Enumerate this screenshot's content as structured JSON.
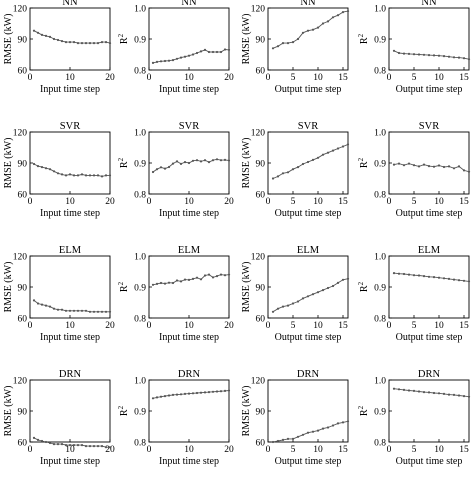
{
  "chart_data": [
    {
      "type": "line",
      "title": "NN",
      "xlabel": "Input time step",
      "ylabel": "RMSE (kW)",
      "xlim": [
        0,
        20
      ],
      "ylim": [
        60,
        120
      ],
      "xticks": [
        0,
        10,
        20
      ],
      "yticks": [
        60,
        90,
        120
      ],
      "series": [
        {
          "x": [
            1,
            2,
            3,
            4,
            5,
            6,
            7,
            8,
            9,
            10,
            11,
            12,
            13,
            14,
            15,
            16,
            17,
            18,
            19,
            20
          ],
          "values": [
            98,
            96,
            94,
            93,
            92,
            90,
            89,
            88,
            87,
            87,
            87,
            86,
            86,
            86,
            86,
            86,
            86,
            87,
            87,
            86
          ]
        }
      ]
    },
    {
      "type": "line",
      "title": "NN",
      "xlabel": "Input time step",
      "ylabel": "R2",
      "xlim": [
        0,
        20
      ],
      "ylim": [
        0.8,
        1.0
      ],
      "xticks": [
        0,
        10,
        20
      ],
      "yticks": [
        0.8,
        0.9,
        1.0
      ],
      "series": [
        {
          "x": [
            1,
            2,
            3,
            4,
            5,
            6,
            7,
            8,
            9,
            10,
            11,
            12,
            13,
            14,
            15,
            16,
            17,
            18,
            19,
            20
          ],
          "values": [
            0.823,
            0.826,
            0.828,
            0.829,
            0.83,
            0.832,
            0.836,
            0.84,
            0.843,
            0.846,
            0.85,
            0.855,
            0.86,
            0.865,
            0.858,
            0.858,
            0.858,
            0.858,
            0.866,
            0.865
          ]
        }
      ]
    },
    {
      "type": "line",
      "title": "NN",
      "xlabel": "Output time step",
      "ylabel": "RMSE (kW)",
      "xlim": [
        0,
        16
      ],
      "ylim": [
        60,
        120
      ],
      "xticks": [
        0,
        5,
        10,
        15
      ],
      "yticks": [
        60,
        90,
        120
      ],
      "series": [
        {
          "x": [
            1,
            2,
            3,
            4,
            5,
            6,
            7,
            8,
            9,
            10,
            11,
            12,
            13,
            14,
            15,
            16
          ],
          "values": [
            81,
            83,
            86,
            86,
            87,
            90,
            96,
            98,
            99,
            101,
            105,
            107,
            111,
            113,
            116,
            117
          ]
        }
      ]
    },
    {
      "type": "line",
      "title": "NN",
      "xlabel": "Output time step",
      "ylabel": "R2",
      "xlim": [
        0,
        16
      ],
      "ylim": [
        0.8,
        1.0
      ],
      "xticks": [
        0,
        5,
        10,
        15
      ],
      "yticks": [
        0.8,
        0.9,
        1.0
      ],
      "series": [
        {
          "x": [
            1,
            2,
            3,
            4,
            5,
            6,
            7,
            8,
            9,
            10,
            11,
            12,
            13,
            14,
            15,
            16
          ],
          "values": [
            0.862,
            0.855,
            0.853,
            0.852,
            0.851,
            0.85,
            0.849,
            0.848,
            0.847,
            0.846,
            0.845,
            0.843,
            0.841,
            0.84,
            0.838,
            0.835
          ]
        }
      ]
    },
    {
      "type": "line",
      "title": "SVR",
      "xlabel": "Input time step",
      "ylabel": "RMSE (kW)",
      "xlim": [
        0,
        20
      ],
      "ylim": [
        60,
        120
      ],
      "xticks": [
        0,
        10,
        20
      ],
      "yticks": [
        60,
        90,
        120
      ],
      "series": [
        {
          "x": [
            1,
            2,
            3,
            4,
            5,
            6,
            7,
            8,
            9,
            10,
            11,
            12,
            13,
            14,
            15,
            16,
            17,
            18,
            19,
            20
          ],
          "values": [
            89,
            87,
            86,
            85,
            84,
            82,
            80,
            79,
            78,
            79,
            78,
            78,
            79,
            78,
            78,
            78,
            78,
            77,
            78,
            78
          ]
        }
      ]
    },
    {
      "type": "line",
      "title": "SVR",
      "xlabel": "Input time step",
      "ylabel": "R2",
      "xlim": [
        0,
        20
      ],
      "ylim": [
        0.8,
        1.0
      ],
      "xticks": [
        0,
        10,
        20
      ],
      "yticks": [
        0.8,
        0.9,
        1.0
      ],
      "series": [
        {
          "x": [
            1,
            2,
            3,
            4,
            5,
            6,
            7,
            8,
            9,
            10,
            11,
            12,
            13,
            14,
            15,
            16,
            17,
            18,
            19,
            20
          ],
          "values": [
            0.871,
            0.88,
            0.886,
            0.882,
            0.887,
            0.898,
            0.905,
            0.897,
            0.903,
            0.9,
            0.907,
            0.909,
            0.905,
            0.909,
            0.903,
            0.909,
            0.912,
            0.909,
            0.91,
            0.908
          ]
        }
      ]
    },
    {
      "type": "line",
      "title": "SVR",
      "xlabel": "Output time step",
      "ylabel": "RMSE (kW)",
      "xlim": [
        0,
        16
      ],
      "ylim": [
        60,
        120
      ],
      "xticks": [
        0,
        5,
        10,
        15
      ],
      "yticks": [
        60,
        90,
        120
      ],
      "series": [
        {
          "x": [
            1,
            2,
            3,
            4,
            5,
            6,
            7,
            8,
            9,
            10,
            11,
            12,
            13,
            14,
            15,
            16
          ],
          "values": [
            75,
            77,
            80,
            81,
            84,
            86,
            89,
            91,
            93,
            95,
            98,
            100,
            102,
            104,
            106,
            108
          ]
        }
      ]
    },
    {
      "type": "line",
      "title": "SVR",
      "xlabel": "Output time step",
      "ylabel": "R2",
      "xlim": [
        0,
        16
      ],
      "ylim": [
        0.8,
        1.0
      ],
      "xticks": [
        0,
        5,
        10,
        15
      ],
      "yticks": [
        0.8,
        0.9,
        1.0
      ],
      "series": [
        {
          "x": [
            1,
            2,
            3,
            4,
            5,
            6,
            7,
            8,
            9,
            10,
            11,
            12,
            13,
            14,
            15,
            16
          ],
          "values": [
            0.895,
            0.898,
            0.893,
            0.898,
            0.893,
            0.889,
            0.895,
            0.89,
            0.888,
            0.892,
            0.887,
            0.889,
            0.883,
            0.889,
            0.876,
            0.872
          ]
        }
      ]
    },
    {
      "type": "line",
      "title": "ELM",
      "xlabel": "Input time step",
      "ylabel": "RMSE (kW)",
      "xlim": [
        0,
        20
      ],
      "ylim": [
        60,
        120
      ],
      "xticks": [
        0,
        10,
        20
      ],
      "yticks": [
        60,
        90,
        120
      ],
      "series": [
        {
          "x": [
            1,
            2,
            3,
            4,
            5,
            6,
            7,
            8,
            9,
            10,
            11,
            12,
            13,
            14,
            15,
            16,
            17,
            18,
            19,
            20
          ],
          "values": [
            77,
            74,
            73,
            72,
            71,
            69,
            68,
            68,
            67,
            67,
            67,
            67,
            67,
            67,
            66,
            66,
            66,
            66,
            66,
            66
          ]
        }
      ]
    },
    {
      "type": "line",
      "title": "ELM",
      "xlabel": "Input time step",
      "ylabel": "R2",
      "xlim": [
        0,
        20
      ],
      "ylim": [
        0.8,
        1.0
      ],
      "xticks": [
        0,
        10,
        20
      ],
      "yticks": [
        0.8,
        0.9,
        1.0
      ],
      "series": [
        {
          "x": [
            1,
            2,
            3,
            4,
            5,
            6,
            7,
            8,
            9,
            10,
            11,
            12,
            13,
            14,
            15,
            16,
            17,
            18,
            19,
            20
          ],
          "values": [
            0.907,
            0.91,
            0.913,
            0.911,
            0.914,
            0.913,
            0.921,
            0.918,
            0.924,
            0.923,
            0.926,
            0.93,
            0.925,
            0.937,
            0.94,
            0.931,
            0.935,
            0.94,
            0.938,
            0.94
          ]
        }
      ]
    },
    {
      "type": "line",
      "title": "ELM",
      "xlabel": "Output time step",
      "ylabel": "RMSE (kW)",
      "xlim": [
        0,
        16
      ],
      "ylim": [
        60,
        120
      ],
      "xticks": [
        0,
        5,
        10,
        15
      ],
      "yticks": [
        60,
        90,
        120
      ],
      "series": [
        {
          "x": [
            1,
            2,
            3,
            4,
            5,
            6,
            7,
            8,
            9,
            10,
            11,
            12,
            13,
            14,
            15,
            16
          ],
          "values": [
            66,
            69,
            71,
            72,
            74,
            76,
            79,
            81,
            83,
            85,
            87,
            89,
            91,
            94,
            97,
            98
          ]
        }
      ]
    },
    {
      "type": "line",
      "title": "ELM",
      "xlabel": "Output time step",
      "ylabel": "R2",
      "xlim": [
        0,
        16
      ],
      "ylim": [
        0.8,
        1.0
      ],
      "xticks": [
        0,
        5,
        10,
        15
      ],
      "yticks": [
        0.8,
        0.9,
        1.0
      ],
      "series": [
        {
          "x": [
            1,
            2,
            3,
            4,
            5,
            6,
            7,
            8,
            9,
            10,
            11,
            12,
            13,
            14,
            15,
            16
          ],
          "values": [
            0.945,
            0.943,
            0.942,
            0.94,
            0.938,
            0.937,
            0.935,
            0.933,
            0.932,
            0.93,
            0.928,
            0.926,
            0.924,
            0.922,
            0.92,
            0.918
          ]
        }
      ]
    },
    {
      "type": "line",
      "title": "DRN",
      "xlabel": "Input time step",
      "ylabel": "RMSE (kW)",
      "xlim": [
        0,
        20
      ],
      "ylim": [
        60,
        120
      ],
      "xticks": [
        0,
        10,
        20
      ],
      "yticks": [
        60,
        90,
        120
      ],
      "series": [
        {
          "x": [
            1,
            2,
            3,
            4,
            5,
            6,
            7,
            8,
            9,
            10,
            11,
            12,
            13,
            14,
            15,
            16,
            17,
            18,
            19,
            20
          ],
          "values": [
            64,
            62,
            61,
            60,
            59,
            58,
            58,
            58,
            57,
            57,
            57,
            57,
            57,
            56,
            56,
            56,
            56,
            56,
            55,
            55
          ]
        }
      ]
    },
    {
      "type": "line",
      "title": "DRN",
      "xlabel": "Input time step",
      "ylabel": "R2",
      "xlim": [
        0,
        20
      ],
      "ylim": [
        0.8,
        1.0
      ],
      "xticks": [
        0,
        10,
        20
      ],
      "yticks": [
        0.8,
        0.9,
        1.0
      ],
      "series": [
        {
          "x": [
            1,
            2,
            3,
            4,
            5,
            6,
            7,
            8,
            9,
            10,
            11,
            12,
            13,
            14,
            15,
            16,
            17,
            18,
            19,
            20
          ],
          "values": [
            0.941,
            0.944,
            0.946,
            0.948,
            0.95,
            0.952,
            0.953,
            0.954,
            0.955,
            0.956,
            0.957,
            0.958,
            0.959,
            0.96,
            0.961,
            0.962,
            0.963,
            0.964,
            0.965,
            0.966
          ]
        }
      ]
    },
    {
      "type": "line",
      "title": "DRN",
      "xlabel": "Output time step",
      "ylabel": "RMSE (kW)",
      "xlim": [
        0,
        16
      ],
      "ylim": [
        60,
        120
      ],
      "xticks": [
        0,
        5,
        10,
        15
      ],
      "yticks": [
        60,
        90,
        120
      ],
      "series": [
        {
          "x": [
            1,
            2,
            3,
            4,
            5,
            6,
            7,
            8,
            9,
            10,
            11,
            12,
            13,
            14,
            15,
            16
          ],
          "values": [
            60,
            61,
            62,
            63,
            63,
            65,
            67,
            69,
            70,
            71,
            73,
            74,
            76,
            78,
            79,
            80
          ]
        }
      ]
    },
    {
      "type": "line",
      "title": "DRN",
      "xlabel": "Output time step",
      "ylabel": "R2",
      "xlim": [
        0,
        16
      ],
      "ylim": [
        0.8,
        1.0
      ],
      "xticks": [
        0,
        5,
        10,
        15
      ],
      "yticks": [
        0.8,
        0.9,
        1.0
      ],
      "series": [
        {
          "x": [
            1,
            2,
            3,
            4,
            5,
            6,
            7,
            8,
            9,
            10,
            11,
            12,
            13,
            14,
            15,
            16
          ],
          "values": [
            0.972,
            0.97,
            0.968,
            0.966,
            0.965,
            0.963,
            0.961,
            0.96,
            0.958,
            0.957,
            0.955,
            0.953,
            0.952,
            0.95,
            0.948,
            0.946
          ]
        }
      ]
    }
  ]
}
